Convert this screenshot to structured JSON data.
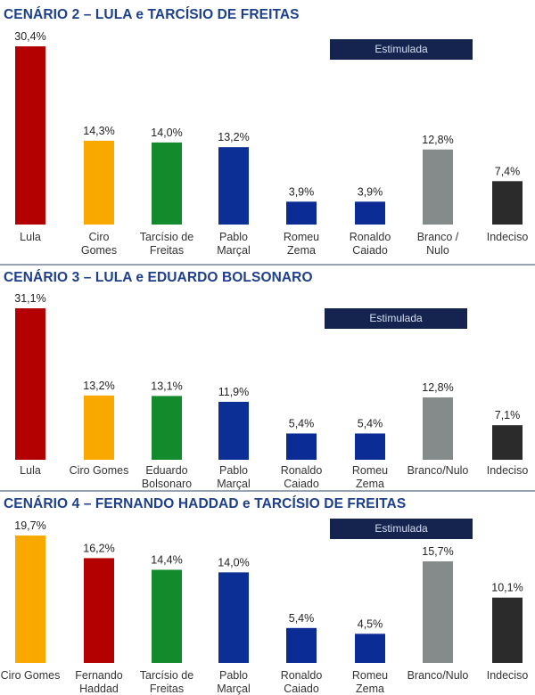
{
  "panels": [
    {
      "title": "CENÁRIO 2 – LULA e TARCÍSIO DE FREITAS",
      "badge": "Estimulada"
    },
    {
      "title": "CENÁRIO 3 – LULA e EDUARDO BOLSONARO",
      "badge": "Estimulada"
    },
    {
      "title": "CENÁRIO 4 – FERNANDO HADDAD e TARCÍSIO DE FREITAS",
      "badge": "Estimulada"
    }
  ],
  "colors": {
    "Lula": "#b30000",
    "Ciro Gomes": "#f9a800",
    "Tarcísio de Freitas": "#138a2c",
    "Eduardo Bolsonaro": "#138a2c",
    "Pablo Marçal": "#0c2f96",
    "Romeu Zema": "#0a2c94",
    "Ronaldo Caiado": "#0a2c94",
    "Branco / Nulo": "#858b8b",
    "Indeciso": "#2b2b2b",
    "Fernando Haddad": "#b30000",
    "title": "#1d3f8c",
    "badge": "#14244e"
  },
  "chart_data": [
    {
      "type": "bar",
      "title": "CENÁRIO 2 – LULA e TARCÍSIO DE FREITAS",
      "categories": [
        "Lula",
        "Ciro Gomes",
        "Tarcísio de Freitas",
        "Pablo Marçal",
        "Romeu Zema",
        "Ronaldo Caiado",
        "Branco / Nulo",
        "Indeciso"
      ],
      "category_lines": [
        [
          "Lula"
        ],
        [
          "Ciro",
          "Gomes"
        ],
        [
          "Tarcísio de",
          "Freitas"
        ],
        [
          "Pablo",
          "Marçal"
        ],
        [
          "Romeu",
          "Zema"
        ],
        [
          "Ronaldo",
          "Caiado"
        ],
        [
          "Branco /",
          "Nulo"
        ],
        [
          "Indeciso"
        ]
      ],
      "color_keys": [
        "Lula",
        "Ciro Gomes",
        "Tarcísio de Freitas",
        "Pablo Marçal",
        "Romeu Zema",
        "Ronaldo Caiado",
        "Branco / Nulo",
        "Indeciso"
      ],
      "values": [
        30.4,
        14.3,
        14.0,
        13.2,
        3.9,
        3.9,
        12.8,
        7.4
      ],
      "labels": [
        "30,4%",
        "14,3%",
        "14,0%",
        "13,2%",
        "3,9%",
        "3,9%",
        "12,8%",
        "7,4%"
      ],
      "ylim": [
        0,
        30.4
      ]
    },
    {
      "type": "bar",
      "title": "CENÁRIO 3 – LULA e EDUARDO BOLSONARO",
      "categories": [
        "Lula",
        "Ciro Gomes",
        "Eduardo Bolsonaro",
        "Pablo Marçal",
        "Ronaldo Caiado",
        "Romeu Zema",
        "Branco/Nulo",
        "Indeciso"
      ],
      "category_lines": [
        [
          "Lula"
        ],
        [
          "Ciro Gomes"
        ],
        [
          "Eduardo",
          "Bolsonaro"
        ],
        [
          "Pablo",
          "Marçal"
        ],
        [
          "Ronaldo",
          "Caiado"
        ],
        [
          "Romeu",
          "Zema"
        ],
        [
          "Branco/Nulo"
        ],
        [
          "Indeciso"
        ]
      ],
      "color_keys": [
        "Lula",
        "Ciro Gomes",
        "Eduardo Bolsonaro",
        "Pablo Marçal",
        "Ronaldo Caiado",
        "Romeu Zema",
        "Branco / Nulo",
        "Indeciso"
      ],
      "values": [
        31.1,
        13.2,
        13.1,
        11.9,
        5.4,
        5.4,
        12.8,
        7.1
      ],
      "labels": [
        "31,1%",
        "13,2%",
        "13,1%",
        "11,9%",
        "5,4%",
        "5,4%",
        "12,8%",
        "7,1%"
      ],
      "ylim": [
        0,
        31.1
      ]
    },
    {
      "type": "bar",
      "title": "CENÁRIO 4 – FERNANDO HADDAD e TARCÍSIO DE FREITAS",
      "categories": [
        "Ciro Gomes",
        "Fernando Haddad",
        "Tarcísio de Freitas",
        "Pablo Marçal",
        "Ronaldo Caiado",
        "Romeu Zema",
        "Branco/Nulo",
        "Indeciso"
      ],
      "category_lines": [
        [
          "Ciro Gomes"
        ],
        [
          "Fernando",
          "Haddad"
        ],
        [
          "Tarcísio de",
          "Freitas"
        ],
        [
          "Pablo",
          "Marçal"
        ],
        [
          "Ronaldo",
          "Caiado"
        ],
        [
          "Romeu",
          "Zema"
        ],
        [
          "Branco/Nulo"
        ],
        [
          "Indeciso"
        ]
      ],
      "color_keys": [
        "Ciro Gomes",
        "Fernando Haddad",
        "Tarcísio de Freitas",
        "Pablo Marçal",
        "Ronaldo Caiado",
        "Romeu Zema",
        "Branco / Nulo",
        "Indeciso"
      ],
      "values": [
        19.7,
        16.2,
        14.4,
        14.0,
        5.4,
        4.5,
        15.7,
        10.1
      ],
      "labels": [
        "19,7%",
        "16,2%",
        "14,4%",
        "14,0%",
        "5,4%",
        "4,5%",
        "15,7%",
        "10,1%"
      ],
      "ylim": [
        0,
        19.7
      ]
    }
  ]
}
